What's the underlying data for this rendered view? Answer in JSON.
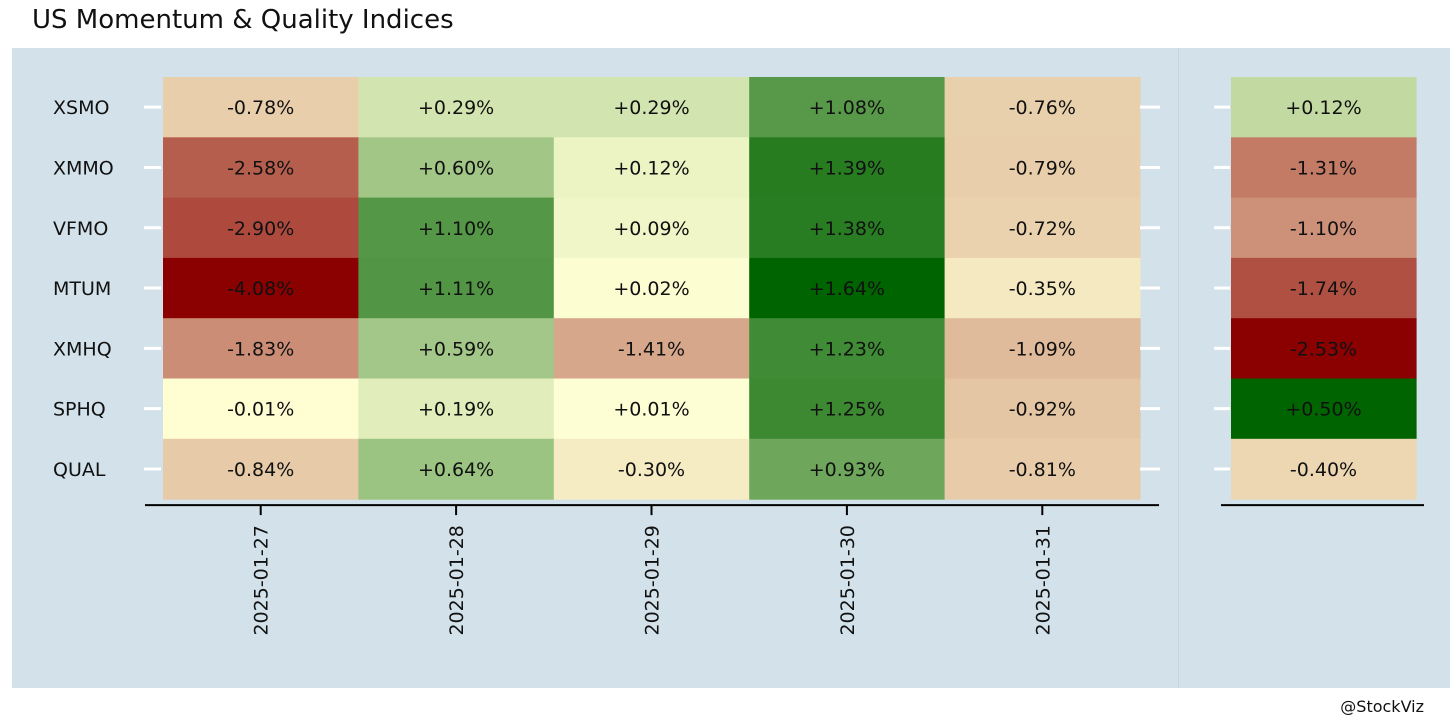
{
  "title": "US Momentum & Quality Indices",
  "caption": "@StockViz",
  "colors": {
    "panel_bg": "#d3e2ea",
    "low": "#8b0000",
    "mid": "#ffffd4",
    "high": "#006400"
  },
  "chart_data": [
    {
      "type": "heatmap",
      "title": "",
      "xlabel": "",
      "ylabel": "",
      "x": [
        "2025-01-27",
        "2025-01-28",
        "2025-01-29",
        "2025-01-30",
        "2025-01-31"
      ],
      "y": [
        "XSMO",
        "XMMO",
        "VFMO",
        "MTUM",
        "XMHQ",
        "SPHQ",
        "QUAL"
      ],
      "values": [
        [
          -0.78,
          0.29,
          0.29,
          1.08,
          -0.76
        ],
        [
          -2.58,
          0.6,
          0.12,
          1.39,
          -0.79
        ],
        [
          -2.9,
          1.1,
          0.09,
          1.38,
          -0.72
        ],
        [
          -4.08,
          1.11,
          0.02,
          1.64,
          -0.35
        ],
        [
          -1.83,
          0.59,
          -1.41,
          1.23,
          -1.09
        ],
        [
          -0.01,
          0.19,
          0.01,
          1.25,
          -0.92
        ],
        [
          -0.84,
          0.64,
          -0.3,
          0.93,
          -0.81
        ]
      ],
      "labels": [
        [
          "-0.78%",
          "+0.29%",
          "+0.29%",
          "+1.08%",
          "-0.76%"
        ],
        [
          "-2.58%",
          "+0.60%",
          "+0.12%",
          "+1.39%",
          "-0.79%"
        ],
        [
          "-2.90%",
          "+1.10%",
          "+0.09%",
          "+1.38%",
          "-0.72%"
        ],
        [
          "-4.08%",
          "+1.11%",
          "+0.02%",
          "+1.64%",
          "-0.35%"
        ],
        [
          "-1.83%",
          "+0.59%",
          "-1.41%",
          "+1.23%",
          "-1.09%"
        ],
        [
          "-0.01%",
          "+0.19%",
          "+0.01%",
          "+1.25%",
          "-0.92%"
        ],
        [
          "-0.84%",
          "+0.64%",
          "-0.30%",
          "+0.93%",
          "-0.81%"
        ]
      ],
      "grid": false,
      "legend": "none"
    },
    {
      "type": "heatmap",
      "title": "",
      "xlabel": "",
      "ylabel": "",
      "x": [
        ""
      ],
      "y": [
        "XSMO",
        "XMMO",
        "VFMO",
        "MTUM",
        "XMHQ",
        "SPHQ",
        "QUAL"
      ],
      "values": [
        [
          0.12
        ],
        [
          -1.31
        ],
        [
          -1.1
        ],
        [
          -1.74
        ],
        [
          -2.53
        ],
        [
          0.5
        ],
        [
          -0.4
        ]
      ],
      "labels": [
        [
          "+0.12%"
        ],
        [
          "-1.31%"
        ],
        [
          "-1.10%"
        ],
        [
          "-1.74%"
        ],
        [
          "-2.53%"
        ],
        [
          "+0.50%"
        ],
        [
          "-0.40%"
        ]
      ],
      "grid": false,
      "legend": "none"
    }
  ]
}
